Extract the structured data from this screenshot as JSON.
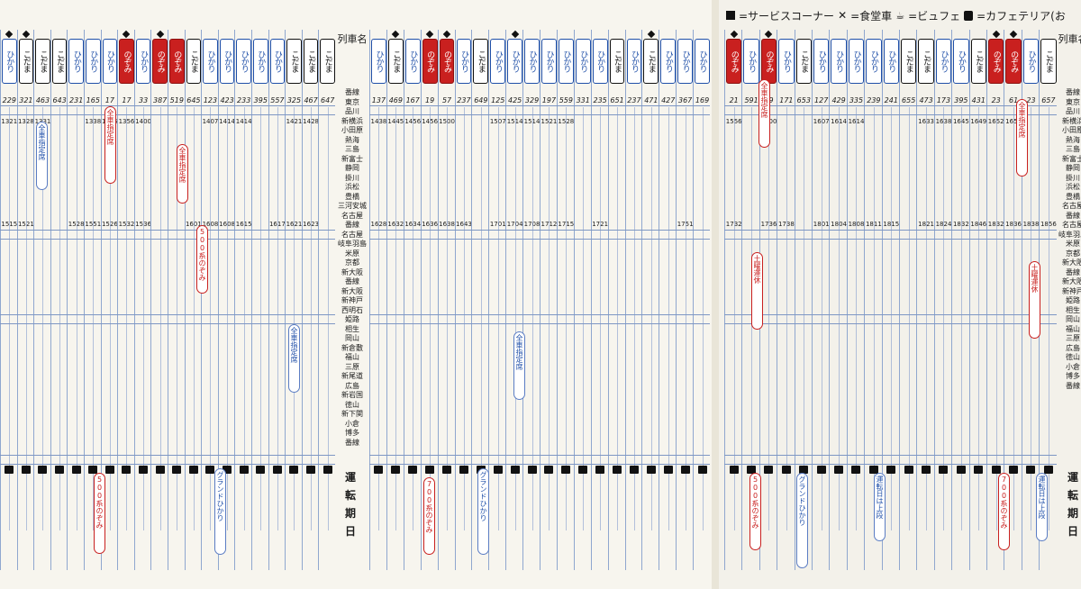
{
  "legend": {
    "items": [
      {
        "icon": "service-corner-icon",
        "label": "=サービスコーナー"
      },
      {
        "icon": "dining-car-icon",
        "label": "=食堂車"
      },
      {
        "icon": "buffet-icon",
        "label": "=ビュフェ"
      },
      {
        "icon": "cafeteria-icon",
        "label": "=カフェテリア(お"
      }
    ]
  },
  "station_header": "列車名",
  "station_labels": {
    "left": [
      "番線",
      "東京",
      "品川",
      "新横浜",
      "小田原",
      "熱海",
      "三島",
      "新富士",
      "静岡",
      "掛川",
      "浜松",
      "豊橋",
      "三河安城",
      "名古屋",
      "番線",
      "名古屋",
      "岐阜羽島",
      "米原",
      "京都",
      "新大阪",
      "番線",
      "新大阪",
      "新神戸",
      "西明石",
      "姫路",
      "相生",
      "岡山",
      "新倉敷",
      "福山",
      "三原",
      "新尾道",
      "広島",
      "新岩国",
      "徳山",
      "新下関",
      "小倉",
      "博多",
      "番線"
    ],
    "right": [
      "番線",
      "東京",
      "品川",
      "新横浜",
      "小田原",
      "熱海",
      "三島",
      "新富士",
      "静岡",
      "掛川",
      "浜松",
      "豊橋",
      "名古屋",
      "番線",
      "名古屋",
      "岐阜羽島",
      "米原",
      "京都",
      "新大阪",
      "番線",
      "新大阪",
      "新神戸",
      "姫路",
      "相生",
      "岡山",
      "福山",
      "三原",
      "広島",
      "徳山",
      "小倉",
      "博多",
      "番線"
    ]
  },
  "unten_label": [
    "運",
    "転",
    "期",
    "日"
  ],
  "page1_left": {
    "trains": [
      {
        "name": "ひかり",
        "kind": "hikari",
        "no": "229",
        "diamond": true,
        "first": "1321",
        "last": "1515"
      },
      {
        "name": "こだま",
        "kind": "kodama",
        "no": "321",
        "diamond": true,
        "first": "1328",
        "last": "1521"
      },
      {
        "name": "こだま",
        "kind": "kodama",
        "no": "463",
        "diamond": false,
        "first": "1331",
        "last": ""
      },
      {
        "name": "こだま",
        "kind": "kodama",
        "no": "643",
        "diamond": false,
        "first": "",
        "last": ""
      },
      {
        "name": "ひかり",
        "kind": "hikari",
        "no": "231",
        "diamond": false,
        "first": "",
        "last": "1528"
      },
      {
        "name": "ひかり",
        "kind": "hikari",
        "no": "165",
        "diamond": false,
        "first": "1338",
        "last": "1551"
      },
      {
        "name": "ひかり",
        "kind": "hikari",
        "no": "17",
        "diamond": false,
        "first": "1345",
        "last": "1526"
      },
      {
        "name": "のぞみ",
        "kind": "nozomi",
        "no": "17",
        "diamond": true,
        "first": "1356",
        "last": "1532"
      },
      {
        "name": "ひかり",
        "kind": "hikari",
        "no": "33",
        "diamond": false,
        "first": "1400",
        "last": "1536"
      },
      {
        "name": "のぞみ",
        "kind": "nozomi",
        "no": "387",
        "diamond": true,
        "first": "",
        "last": ""
      },
      {
        "name": "のぞみ",
        "kind": "nozomi",
        "no": "519",
        "diamond": false,
        "first": "",
        "last": ""
      },
      {
        "name": "こだま",
        "kind": "kodama",
        "no": "645",
        "diamond": false,
        "first": "",
        "last": "1601"
      },
      {
        "name": "ひかり",
        "kind": "hikari",
        "no": "123",
        "diamond": false,
        "first": "1407",
        "last": "1608"
      },
      {
        "name": "ひかり",
        "kind": "hikari",
        "no": "423",
        "diamond": false,
        "first": "1414",
        "last": "1608"
      },
      {
        "name": "ひかり",
        "kind": "hikari",
        "no": "233",
        "diamond": false,
        "first": "1414",
        "last": "1615"
      },
      {
        "name": "ひかり",
        "kind": "hikari",
        "no": "395",
        "diamond": false,
        "first": "",
        "last": ""
      },
      {
        "name": "ひかり",
        "kind": "hikari",
        "no": "557",
        "diamond": false,
        "first": "",
        "last": "1617"
      },
      {
        "name": "こだま",
        "kind": "kodama",
        "no": "325",
        "diamond": false,
        "first": "1421",
        "last": "1621"
      },
      {
        "name": "こだま",
        "kind": "kodama",
        "no": "467",
        "diamond": false,
        "first": "1428",
        "last": "1623"
      },
      {
        "name": "こだま",
        "kind": "kodama",
        "no": "647",
        "diamond": false,
        "first": "",
        "last": ""
      }
    ]
  },
  "page1_right": {
    "trains": [
      {
        "name": "ひかり",
        "kind": "hikari",
        "no": "137",
        "diamond": false,
        "first": "1438",
        "last": "1628"
      },
      {
        "name": "こだま",
        "kind": "kodama",
        "no": "469",
        "diamond": true,
        "first": "1445",
        "last": "1632"
      },
      {
        "name": "ひかり",
        "kind": "hikari",
        "no": "167",
        "diamond": false,
        "first": "1456",
        "last": "1634"
      },
      {
        "name": "のぞみ",
        "kind": "nozomi",
        "no": "19",
        "diamond": true,
        "first": "1456",
        "last": "1636"
      },
      {
        "name": "のぞみ",
        "kind": "nozomi",
        "no": "57",
        "diamond": true,
        "first": "1500",
        "last": "1638"
      },
      {
        "name": "ひかり",
        "kind": "hikari",
        "no": "237",
        "diamond": false,
        "first": "",
        "last": "1643"
      },
      {
        "name": "こだま",
        "kind": "kodama",
        "no": "649",
        "diamond": false,
        "first": "",
        "last": ""
      },
      {
        "name": "ひかり",
        "kind": "hikari",
        "no": "125",
        "diamond": false,
        "first": "1507",
        "last": "1701"
      },
      {
        "name": "ひかり",
        "kind": "hikari",
        "no": "425",
        "diamond": true,
        "first": "1514",
        "last": "1704"
      },
      {
        "name": "ひかり",
        "kind": "hikari",
        "no": "329",
        "diamond": false,
        "first": "1514",
        "last": "1708"
      },
      {
        "name": "ひかり",
        "kind": "hikari",
        "no": "197",
        "diamond": false,
        "first": "1521",
        "last": "1712"
      },
      {
        "name": "ひかり",
        "kind": "hikari",
        "no": "559",
        "diamond": false,
        "first": "1528",
        "last": "1715"
      },
      {
        "name": "ひかり",
        "kind": "hikari",
        "no": "331",
        "diamond": false,
        "first": "",
        "last": ""
      },
      {
        "name": "ひかり",
        "kind": "hikari",
        "no": "235",
        "diamond": false,
        "first": "",
        "last": "1721"
      },
      {
        "name": "こだま",
        "kind": "kodama",
        "no": "651",
        "diamond": false,
        "first": "",
        "last": ""
      },
      {
        "name": "ひかり",
        "kind": "hikari",
        "no": "237",
        "diamond": false,
        "first": "",
        "last": ""
      },
      {
        "name": "こだま",
        "kind": "kodama",
        "no": "471",
        "diamond": true,
        "first": "",
        "last": ""
      },
      {
        "name": "ひかり",
        "kind": "hikari",
        "no": "427",
        "diamond": false,
        "first": "",
        "last": ""
      },
      {
        "name": "ひかり",
        "kind": "hikari",
        "no": "367",
        "diamond": false,
        "first": "",
        "last": "1751"
      },
      {
        "name": "ひかり",
        "kind": "hikari",
        "no": "169",
        "diamond": false,
        "first": "",
        "last": ""
      }
    ]
  },
  "page2": {
    "trains": [
      {
        "name": "のぞみ",
        "kind": "nozomi",
        "no": "21",
        "diamond": true,
        "first": "1556",
        "last": "1732"
      },
      {
        "name": "ひかり",
        "kind": "hikari",
        "no": "591",
        "diamond": false,
        "first": "",
        "last": ""
      },
      {
        "name": "のぞみ",
        "kind": "nozomi",
        "no": "59",
        "diamond": true,
        "first": "1600",
        "last": "1736"
      },
      {
        "name": "ひかり",
        "kind": "hikari",
        "no": "171",
        "diamond": false,
        "first": "",
        "last": "1738"
      },
      {
        "name": "こだま",
        "kind": "kodama",
        "no": "653",
        "diamond": false,
        "first": "",
        "last": ""
      },
      {
        "name": "ひかり",
        "kind": "hikari",
        "no": "127",
        "diamond": false,
        "first": "1607",
        "last": "1801"
      },
      {
        "name": "ひかり",
        "kind": "hikari",
        "no": "429",
        "diamond": false,
        "first": "1614",
        "last": "1804"
      },
      {
        "name": "ひかり",
        "kind": "hikari",
        "no": "335",
        "diamond": false,
        "first": "1614",
        "last": "1808"
      },
      {
        "name": "ひかり",
        "kind": "hikari",
        "no": "239",
        "diamond": false,
        "first": "",
        "last": "1811"
      },
      {
        "name": "ひかり",
        "kind": "hikari",
        "no": "241",
        "diamond": false,
        "first": "",
        "last": "1815"
      },
      {
        "name": "こだま",
        "kind": "kodama",
        "no": "655",
        "diamond": false,
        "first": "",
        "last": ""
      },
      {
        "name": "こだま",
        "kind": "kodama",
        "no": "473",
        "diamond": false,
        "first": "1633",
        "last": "1821"
      },
      {
        "name": "ひかり",
        "kind": "hikari",
        "no": "173",
        "diamond": false,
        "first": "1638",
        "last": "1824"
      },
      {
        "name": "ひかり",
        "kind": "hikari",
        "no": "395",
        "diamond": false,
        "first": "1645",
        "last": "1832"
      },
      {
        "name": "こだま",
        "kind": "kodama",
        "no": "431",
        "diamond": false,
        "first": "1649",
        "last": "1846"
      },
      {
        "name": "のぞみ",
        "kind": "nozomi",
        "no": "23",
        "diamond": true,
        "first": "1652",
        "last": "1832"
      },
      {
        "name": "のぞみ",
        "kind": "nozomi",
        "no": "61",
        "diamond": true,
        "first": "1656",
        "last": "1836"
      },
      {
        "name": "ひかり",
        "kind": "hikari",
        "no": "23",
        "diamond": false,
        "first": "",
        "last": "1838"
      },
      {
        "name": "こだま",
        "kind": "kodama",
        "no": "657",
        "diamond": false,
        "first": "",
        "last": "1856"
      }
    ]
  },
  "notes": {
    "zenseki": "全車指定席",
    "nozomi500": "500系のぞみ",
    "nozomi700": "700系のぞみ",
    "grand": "グランドひかり",
    "saturday": "土曜運休",
    "unten_jodan": "運転日は上段",
    "dates_a": "12月29日〜31日",
    "dates_b": "12月30日・1月2日",
    "kaisatsu": "6両編成",
    "kodama699": "こだま 699",
    "kodama589": "こだま 589"
  }
}
